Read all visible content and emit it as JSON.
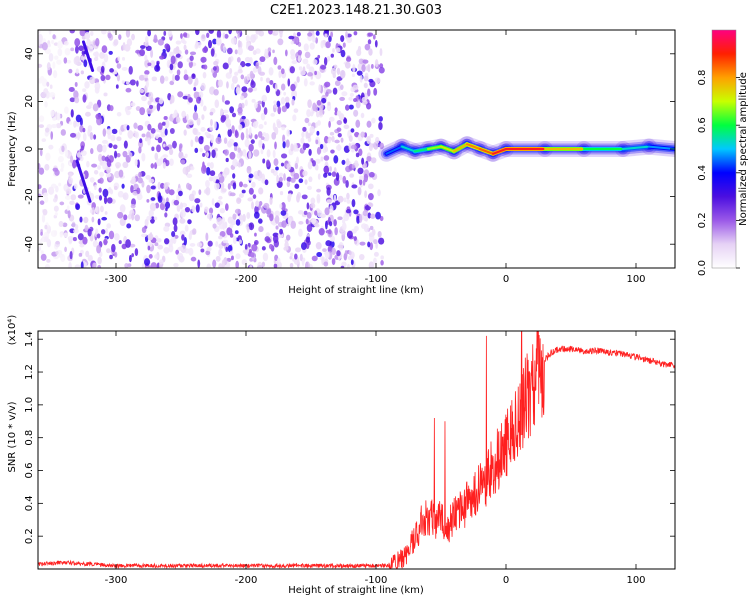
{
  "figure_title": "C2E1.2023.148.21.30.G03",
  "chart_data": [
    {
      "type": "heatmap",
      "xlabel": "Height of straight line (km)",
      "ylabel": "Frequency (Hz)",
      "xlim": [
        -360,
        130
      ],
      "ylim": [
        -50,
        50
      ],
      "xticks": [
        -300,
        -200,
        -100,
        0,
        100
      ],
      "yticks": [
        -40,
        -20,
        0,
        20,
        40
      ],
      "colorbar": {
        "label": "Normalized spectral amplitude",
        "range": [
          0,
          1
        ],
        "ticks": [
          0.0,
          0.2,
          0.4,
          0.6,
          0.8
        ],
        "colors": [
          "#ffffff",
          "#e6d2f5",
          "#9b59e8",
          "#4b0fe0",
          "#0000ff",
          "#00c8ff",
          "#00ff40",
          "#c8ff00",
          "#ffa000",
          "#ff2000",
          "#ff0080"
        ]
      },
      "regions": [
        {
          "x_range": [
            -360,
            -95
          ],
          "y_range": [
            -50,
            50
          ],
          "pattern": "broadband noise",
          "amplitude": [
            0.05,
            0.35
          ]
        },
        {
          "x_range": [
            -95,
            130
          ],
          "y_center": 0,
          "pattern": "narrow carrier line",
          "amplitude": [
            0.3,
            0.95
          ]
        }
      ],
      "streaks": [
        {
          "from": [
            -325,
            45
          ],
          "to": [
            -318,
            33
          ]
        },
        {
          "from": [
            -330,
            -5
          ],
          "to": [
            -320,
            -22
          ]
        }
      ],
      "carrier": {
        "x": [
          -92,
          -80,
          -70,
          -60,
          -50,
          -40,
          -30,
          -20,
          -10,
          0,
          30,
          60,
          90,
          110,
          130
        ],
        "y": [
          -2,
          1,
          -1,
          0,
          1,
          -1,
          2,
          0,
          -2,
          0,
          0,
          0,
          0,
          1,
          0
        ],
        "amplitude": [
          0.4,
          0.5,
          0.55,
          0.6,
          0.75,
          0.7,
          0.85,
          0.8,
          0.9,
          0.95,
          0.9,
          0.65,
          0.55,
          0.5,
          0.45
        ]
      }
    },
    {
      "type": "line",
      "xlabel": "Height of straight line (km)",
      "ylabel": "SNR (10 * v/v)",
      "yscale_label": "(x10⁴)",
      "xlim": [
        -360,
        130
      ],
      "ylim": [
        0,
        1.45
      ],
      "xticks": [
        -300,
        -200,
        -100,
        0,
        100
      ],
      "yticks": [
        0.2,
        0.4,
        0.6,
        0.8,
        1.0,
        1.2,
        1.4
      ],
      "color": "#ff2020",
      "series": [
        {
          "x": [
            -360,
            -340,
            -320,
            -300,
            -250,
            -200,
            -150,
            -100,
            -90,
            -80,
            -75,
            -70,
            -65,
            -60,
            -55,
            -50,
            -45,
            -40,
            -35,
            -30,
            -25,
            -20,
            -15,
            -10,
            -5,
            0,
            5,
            10,
            15,
            20,
            25,
            30,
            35,
            40,
            50,
            60,
            70,
            80,
            90,
            100,
            110,
            120,
            130
          ],
          "y": [
            0.03,
            0.04,
            0.03,
            0.02,
            0.02,
            0.02,
            0.02,
            0.02,
            0.02,
            0.06,
            0.12,
            0.2,
            0.28,
            0.32,
            0.3,
            0.3,
            0.25,
            0.32,
            0.35,
            0.4,
            0.45,
            0.5,
            0.55,
            0.62,
            0.68,
            0.75,
            0.82,
            0.92,
            1.02,
            1.12,
            1.2,
            1.28,
            1.32,
            1.34,
            1.34,
            1.33,
            1.33,
            1.32,
            1.31,
            1.29,
            1.27,
            1.25,
            1.24
          ]
        }
      ],
      "spikes": [
        {
          "x": -55,
          "y": 0.92
        },
        {
          "x": -47,
          "y": 0.9
        },
        {
          "x": -15,
          "y": 1.42
        },
        {
          "x": 12,
          "y": 1.45
        }
      ]
    }
  ]
}
